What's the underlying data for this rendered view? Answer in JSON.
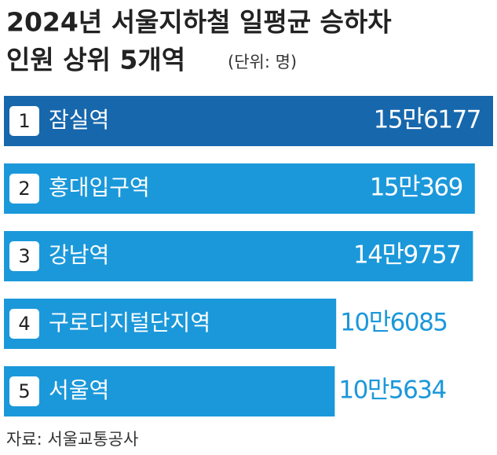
{
  "chart_data": {
    "type": "hbar",
    "title": [
      "2024년 서울지하철 일평균 승하차",
      "인원 상위 5개역"
    ],
    "subtitle": "(단위: 명)",
    "ranks": [
      1,
      2,
      3,
      4,
      5
    ],
    "categories": [
      "잠실역",
      "홍대입구역",
      "강남역",
      "구로디지털단지역",
      "서울역"
    ],
    "values": [
      156177,
      150369,
      149757,
      106085,
      105634
    ],
    "value_labels": [
      "15만6177",
      "15만369",
      "14만9757",
      "10만6085",
      "10만5634"
    ],
    "colors": [
      "#1767ac",
      "#1b98da",
      "#1b98da",
      "#1b98da",
      "#1b98da"
    ],
    "source": "자료: 서울교통공사"
  }
}
